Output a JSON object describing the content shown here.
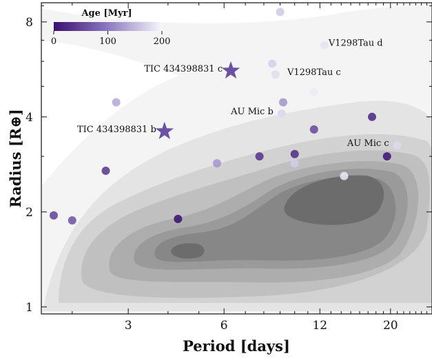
{
  "chart_data": {
    "type": "scatter",
    "xlabel": "Period [days]",
    "ylabel": "Radius [R⊕]",
    "xscale": "log",
    "yscale": "log",
    "xlim": [
      1.6,
      27
    ],
    "ylim": [
      0.95,
      9.2
    ],
    "xticks": [
      3,
      6,
      12,
      20
    ],
    "yticks": [
      1,
      2,
      4,
      8
    ],
    "background": "grey density contours of the known planet population",
    "colorbar": {
      "title": "Age [Myr]",
      "ticks": [
        0,
        100,
        200
      ],
      "range": [
        0,
        200
      ],
      "placement": "top-left",
      "color_low": "#3b0f70",
      "color_high": "#f7f7fb"
    },
    "points": [
      {
        "period": 1.75,
        "radius": 1.95,
        "age": 55
      },
      {
        "period": 2.0,
        "radius": 1.88,
        "age": 70
      },
      {
        "period": 2.55,
        "radius": 2.7,
        "age": 45
      },
      {
        "period": 2.75,
        "radius": 4.45,
        "age": 140
      },
      {
        "period": 4.3,
        "radius": 1.9,
        "age": 5
      },
      {
        "period": 5.7,
        "radius": 2.85,
        "age": 125
      },
      {
        "period": 7.75,
        "radius": 3.0,
        "age": 40
      },
      {
        "period": 8.5,
        "radius": 5.9,
        "age": 170
      },
      {
        "period": 8.7,
        "radius": 5.45,
        "age": 180
      },
      {
        "period": 9.0,
        "radius": 8.6,
        "age": 165
      },
      {
        "period": 9.1,
        "radius": 4.1,
        "age": 175
      },
      {
        "period": 9.2,
        "radius": 4.45,
        "age": 125
      },
      {
        "period": 10.0,
        "radius": 3.05,
        "age": 35
      },
      {
        "period": 10.0,
        "radius": 2.85,
        "age": 165
      },
      {
        "period": 11.5,
        "radius": 3.65,
        "age": 60
      },
      {
        "period": 11.5,
        "radius": 4.8,
        "age": 190
      },
      {
        "period": 12.4,
        "radius": 6.75,
        "age": 185
      },
      {
        "period": 14.3,
        "radius": 2.6,
        "age": 185
      },
      {
        "period": 17.5,
        "radius": 4.0,
        "age": 30
      },
      {
        "period": 19.5,
        "radius": 3.0,
        "age": 10
      },
      {
        "period": 21.0,
        "radius": 3.25,
        "age": 175
      }
    ],
    "stars": [
      {
        "period": 6.3,
        "radius": 5.6,
        "age": 140
      },
      {
        "period": 3.9,
        "radius": 3.6,
        "age": 140
      }
    ],
    "annotations": [
      {
        "text": "V1298Tau d",
        "period": 12.4,
        "radius": 6.75,
        "side": "right"
      },
      {
        "text": "V1298Tau c",
        "period": 9.2,
        "radius": 5.45,
        "side": "right"
      },
      {
        "text": "TIC 434398831 c",
        "period": 6.3,
        "radius": 5.6,
        "side": "left"
      },
      {
        "text": "AU Mic b",
        "period": 9.1,
        "radius": 4.1,
        "side": "left"
      },
      {
        "text": "TIC 434398831 b",
        "period": 3.9,
        "radius": 3.6,
        "side": "left"
      },
      {
        "text": "AU Mic c",
        "period": 21.0,
        "radius": 3.25,
        "side": "left"
      }
    ]
  }
}
